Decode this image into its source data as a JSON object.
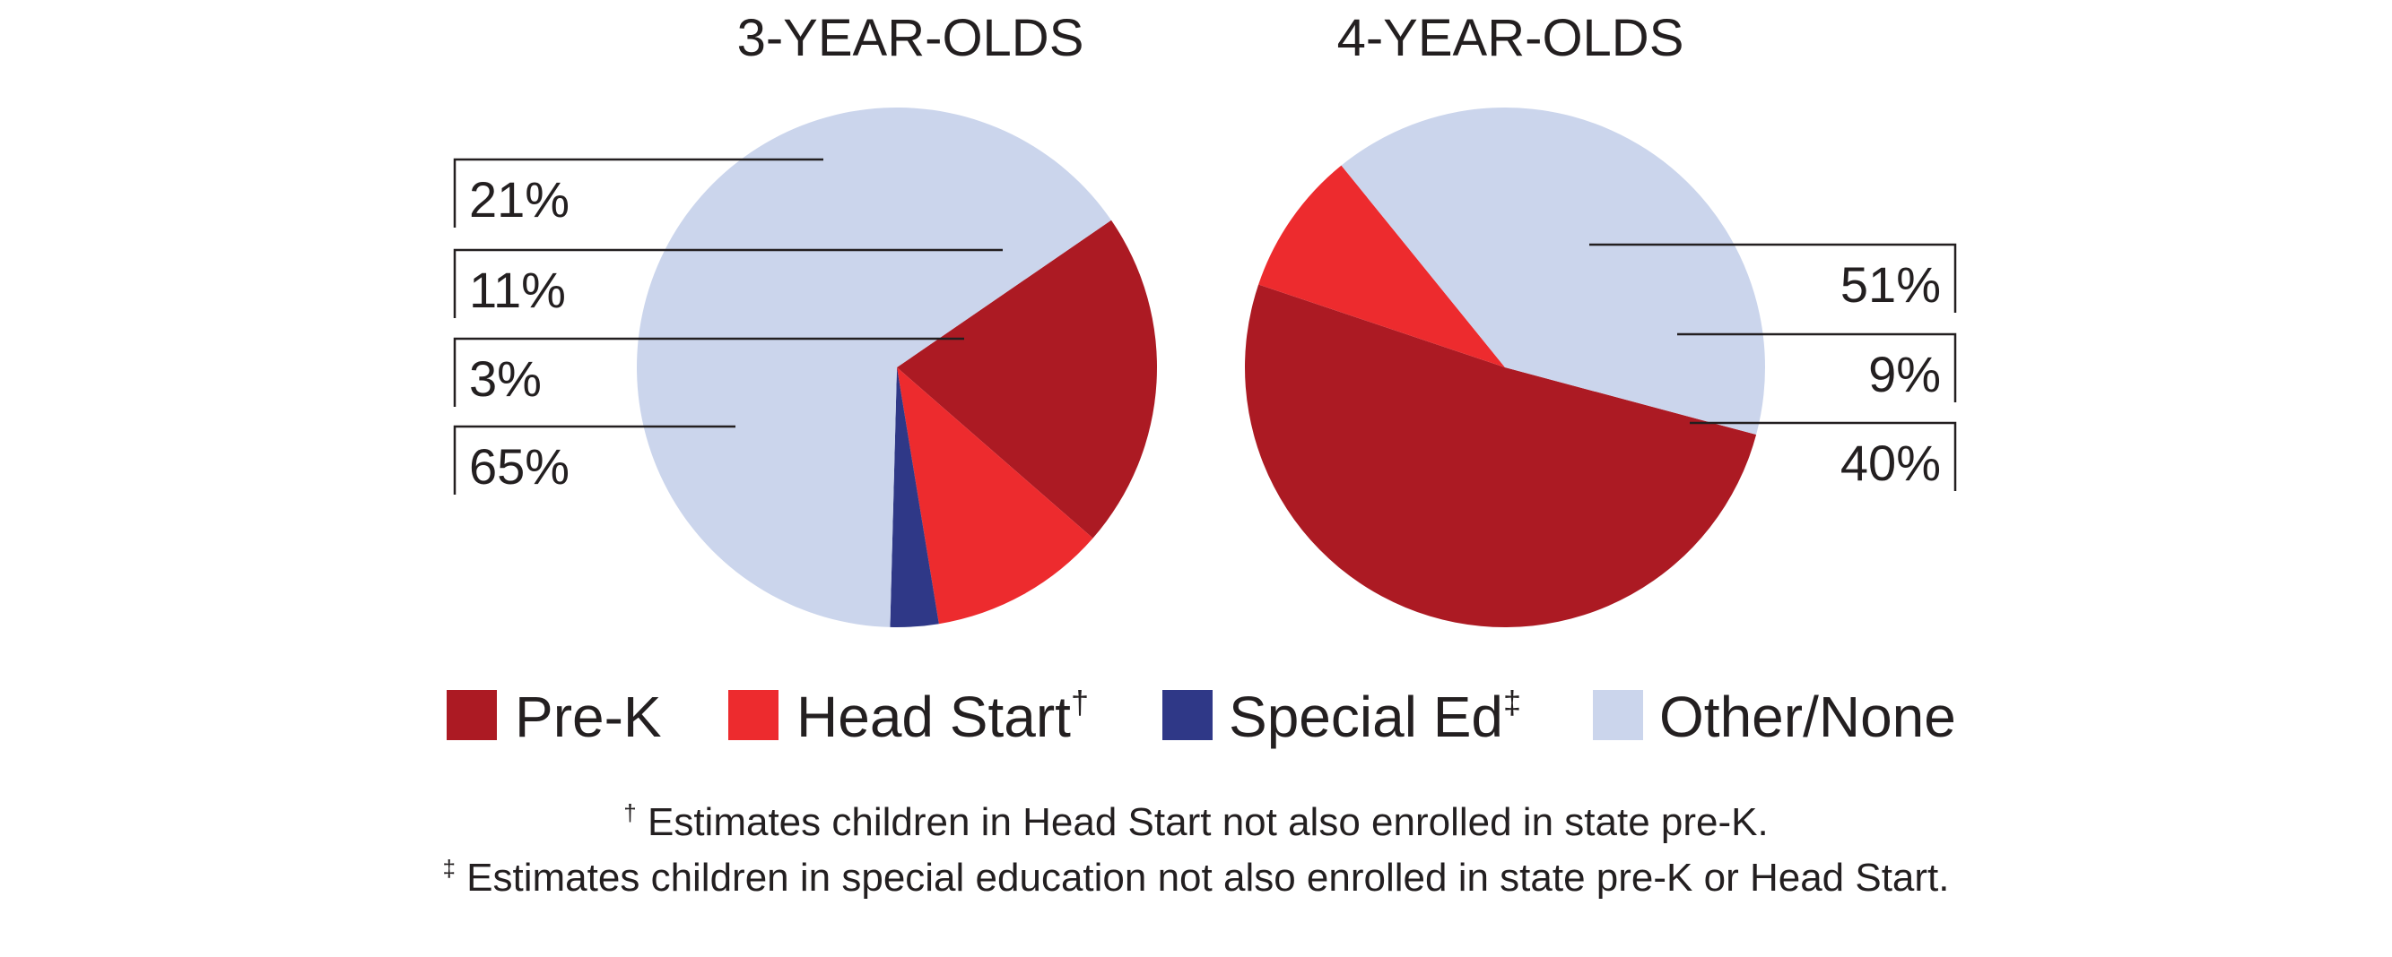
{
  "chart_data": {
    "type": "pie",
    "categories": [
      "Pre-K",
      "Head Start†",
      "Special Ed‡",
      "Other/None"
    ],
    "colors": [
      "#ac1a23",
      "#ed2b2e",
      "#2f3887",
      "#cbd5ec"
    ],
    "pies": [
      {
        "title": "3-YEAR-OLDS",
        "values": [
          21,
          11,
          3,
          65
        ],
        "labels": [
          "21%",
          "11%",
          "3%",
          "65%"
        ]
      },
      {
        "title": "4-YEAR-OLDS",
        "values": [
          51,
          9,
          0,
          40
        ],
        "labels": [
          "51%",
          "9%",
          "",
          "40%"
        ]
      }
    ],
    "legend": {
      "placement": "bottom",
      "items": [
        "Pre-K",
        "Head Start†",
        "Special Ed‡",
        "Other/None"
      ]
    }
  },
  "footnotes": [
    {
      "mark": "†",
      "text": "Estimates children in Head Start not also enrolled in state pre-K."
    },
    {
      "mark": "‡",
      "text": "Estimates children in special education not also enrolled in state pre-K or Head Start."
    }
  ]
}
